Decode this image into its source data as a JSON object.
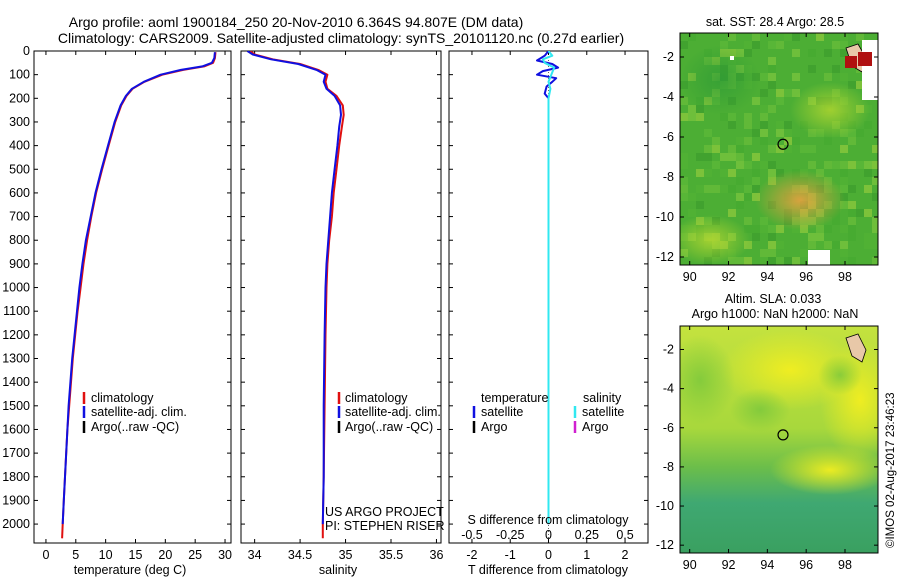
{
  "header": {
    "line1": "Argo profile: aoml 1900184_250 20-Nov-2010 6.364S 94.807E (DM data)",
    "line2": "Climatology: CARS2009. Satellite-adjusted climatology: synTS_20101120.nc (0.27d earlier)"
  },
  "colors": {
    "climatology": "#e01010",
    "satellite": "#1010e0",
    "argo": "#000000",
    "sal_satellite": "#30e8f0",
    "sal_argo": "#d020d0"
  },
  "chart_data": [
    {
      "type": "line",
      "name": "temperature-profile",
      "xlabel": "temperature (deg C)",
      "ylabel": "",
      "xlim": [
        -2,
        31
      ],
      "ylim": [
        2080,
        0
      ],
      "xticks": [
        "0",
        "5",
        "10",
        "15",
        "20",
        "25",
        "30"
      ],
      "yticks": [
        "0",
        "100",
        "200",
        "300",
        "400",
        "500",
        "600",
        "700",
        "800",
        "900",
        "1000",
        "1100",
        "1200",
        "1300",
        "1400",
        "1500",
        "1600",
        "1700",
        "1800",
        "1900",
        "2000"
      ],
      "legend": [
        "climatology",
        "satellite-adj. clim.",
        "Argo(..raw -QC)"
      ],
      "series": [
        {
          "name": "climatology",
          "color": "#e01010",
          "points": [
            [
              28.4,
              5
            ],
            [
              28.3,
              30
            ],
            [
              28.0,
              50
            ],
            [
              26.5,
              65
            ],
            [
              23.0,
              80
            ],
            [
              19.5,
              100
            ],
            [
              16.5,
              130
            ],
            [
              14.5,
              160
            ],
            [
              13.5,
              190
            ],
            [
              12.6,
              230
            ],
            [
              11.6,
              300
            ],
            [
              10.5,
              400
            ],
            [
              9.4,
              500
            ],
            [
              8.4,
              600
            ],
            [
              7.6,
              700
            ],
            [
              6.9,
              800
            ],
            [
              6.3,
              900
            ],
            [
              5.8,
              1000
            ],
            [
              5.3,
              1100
            ],
            [
              4.9,
              1200
            ],
            [
              4.5,
              1300
            ],
            [
              4.2,
              1400
            ],
            [
              3.9,
              1500
            ],
            [
              3.6,
              1600
            ],
            [
              3.4,
              1700
            ],
            [
              3.2,
              1800
            ],
            [
              3.0,
              1900
            ],
            [
              2.8,
              2000
            ],
            [
              2.7,
              2060
            ]
          ]
        },
        {
          "name": "satellite-adj. clim.",
          "color": "#1010e0",
          "points": [
            [
              28.3,
              5
            ],
            [
              28.2,
              30
            ],
            [
              27.8,
              50
            ],
            [
              26.2,
              65
            ],
            [
              22.6,
              80
            ],
            [
              19.2,
              100
            ],
            [
              16.4,
              130
            ],
            [
              14.4,
              160
            ],
            [
              13.4,
              190
            ],
            [
              12.5,
              230
            ],
            [
              11.5,
              300
            ],
            [
              10.4,
              400
            ],
            [
              9.3,
              500
            ],
            [
              8.3,
              600
            ],
            [
              7.5,
              700
            ],
            [
              6.7,
              800
            ],
            [
              6.1,
              900
            ],
            [
              5.6,
              1000
            ],
            [
              5.2,
              1100
            ],
            [
              4.8,
              1200
            ],
            [
              4.4,
              1300
            ],
            [
              4.1,
              1400
            ],
            [
              3.8,
              1500
            ],
            [
              3.6,
              1600
            ],
            [
              3.4,
              1700
            ],
            [
              3.2,
              1800
            ],
            [
              3.0,
              1900
            ],
            [
              2.8,
              2000
            ]
          ]
        }
      ]
    },
    {
      "type": "line",
      "name": "salinity-profile",
      "xlabel": "salinity",
      "xlim": [
        33.85,
        36.05
      ],
      "ylim": [
        2080,
        0
      ],
      "xticks": [
        "34",
        "34.5",
        "35",
        "35.5",
        "36"
      ],
      "legend": [
        "climatology",
        "satellite-adj. clim.",
        "Argo(..raw -QC)"
      ],
      "annotation": [
        "US ARGO PROJECT",
        "PI: STEPHEN RISER"
      ],
      "series": [
        {
          "name": "climatology",
          "color": "#e01010",
          "points": [
            [
              33.95,
              0
            ],
            [
              34.0,
              15
            ],
            [
              34.2,
              35
            ],
            [
              34.5,
              55
            ],
            [
              34.7,
              80
            ],
            [
              34.8,
              100
            ],
            [
              34.78,
              130
            ],
            [
              34.8,
              160
            ],
            [
              34.9,
              190
            ],
            [
              34.97,
              230
            ],
            [
              34.98,
              270
            ],
            [
              34.96,
              320
            ],
            [
              34.93,
              400
            ],
            [
              34.9,
              500
            ],
            [
              34.87,
              600
            ],
            [
              34.85,
              700
            ],
            [
              34.82,
              800
            ],
            [
              34.8,
              900
            ],
            [
              34.79,
              1000
            ],
            [
              34.78,
              1200
            ],
            [
              34.77,
              1500
            ],
            [
              34.76,
              1800
            ],
            [
              34.75,
              2000
            ],
            [
              34.75,
              2060
            ]
          ]
        },
        {
          "name": "satellite-adj. clim.",
          "color": "#1010e0",
          "points": [
            [
              33.92,
              0
            ],
            [
              33.98,
              15
            ],
            [
              34.18,
              35
            ],
            [
              34.48,
              55
            ],
            [
              34.68,
              80
            ],
            [
              34.78,
              100
            ],
            [
              34.76,
              130
            ],
            [
              34.79,
              160
            ],
            [
              34.88,
              190
            ],
            [
              34.94,
              230
            ],
            [
              34.95,
              270
            ],
            [
              34.93,
              320
            ],
            [
              34.91,
              400
            ],
            [
              34.88,
              500
            ],
            [
              34.85,
              600
            ],
            [
              34.83,
              700
            ],
            [
              34.81,
              800
            ],
            [
              34.79,
              900
            ],
            [
              34.78,
              1000
            ],
            [
              34.77,
              1200
            ],
            [
              34.76,
              1500
            ],
            [
              34.76,
              1800
            ],
            [
              34.75,
              2000
            ]
          ]
        }
      ]
    },
    {
      "type": "line",
      "name": "difference-profile",
      "xlabel": "T difference from climatology",
      "xlabel_top": "S difference from climatology",
      "xlim": [
        -2.6,
        2.6
      ],
      "ylim": [
        2080,
        0
      ],
      "xticks": [
        "-2",
        "-1",
        "0",
        "1",
        "2"
      ],
      "xticks_top": [
        "-0.5",
        "-0.25",
        "0",
        "0.25",
        "0.5"
      ],
      "legend": {
        "temperature_header": "temperature",
        "salinity_header": "salinity",
        "t_satellite": "satellite",
        "t_argo": "Argo",
        "s_satellite": "satellite",
        "s_argo": "Argo"
      },
      "series": [
        {
          "name": "temperature satellite",
          "color": "#1010e0",
          "points": [
            [
              0,
              0
            ],
            [
              -0.1,
              20
            ],
            [
              -0.3,
              40
            ],
            [
              0.1,
              55
            ],
            [
              0.25,
              70
            ],
            [
              -0.15,
              85
            ],
            [
              -0.3,
              100
            ],
            [
              0.2,
              115
            ],
            [
              0.1,
              130
            ],
            [
              -0.05,
              150
            ],
            [
              -0.1,
              180
            ],
            [
              0.0,
              200
            ],
            [
              0.0,
              300
            ],
            [
              0.0,
              600
            ],
            [
              0.0,
              1000
            ],
            [
              0.0,
              2000
            ]
          ]
        },
        {
          "name": "salinity satellite",
          "color": "#30e8f0",
          "points": [
            [
              0,
              0
            ],
            [
              0.1,
              20
            ],
            [
              -0.15,
              35
            ],
            [
              -0.1,
              50
            ],
            [
              0.15,
              70
            ],
            [
              0.1,
              90
            ],
            [
              0.05,
              110
            ],
            [
              0.0,
              130
            ],
            [
              0.05,
              160
            ],
            [
              0.0,
              200
            ],
            [
              0.0,
              500
            ],
            [
              0.0,
              1000
            ],
            [
              0.0,
              2000
            ]
          ]
        }
      ]
    },
    {
      "type": "heatmap",
      "name": "sst-map",
      "title": "sat. SST: 28.4 Argo: 28.5",
      "xlim": [
        89.5,
        99.7
      ],
      "ylim": [
        -12.4,
        -0.8
      ],
      "xticks": [
        "90",
        "92",
        "94",
        "96",
        "98"
      ],
      "yticks": [
        "-2",
        "-4",
        "-6",
        "-8",
        "-10",
        "-12"
      ],
      "marker": {
        "lon": 94.807,
        "lat": -6.364
      }
    },
    {
      "type": "heatmap",
      "name": "sla-map",
      "title_line1": "Altim. SLA: 0.033",
      "title_line2": "Argo h1000: NaN h2000: NaN",
      "xlim": [
        89.5,
        99.7
      ],
      "ylim": [
        -12.4,
        -0.8
      ],
      "xticks": [
        "90",
        "92",
        "94",
        "96",
        "98"
      ],
      "yticks": [
        "-2",
        "-4",
        "-6",
        "-8",
        "-10",
        "-12"
      ],
      "marker": {
        "lon": 94.807,
        "lat": -6.364
      }
    }
  ],
  "footer_stamp": "©IMOS 02-Aug-2017 23:46:23"
}
